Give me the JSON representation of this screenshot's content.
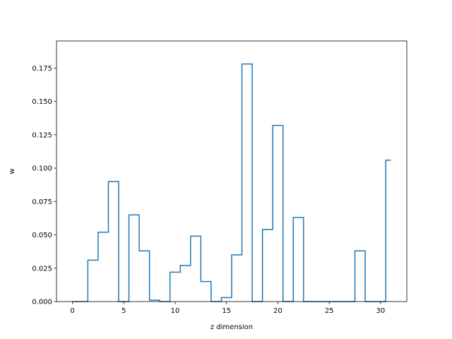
{
  "chart_data": {
    "type": "line",
    "style": "step-mid",
    "title": "",
    "xlabel": "z dimension",
    "ylabel": "w",
    "xlim": [
      -1.55,
      32.55
    ],
    "ylim": [
      0,
      0.1953
    ],
    "grid": false,
    "legend": "none",
    "x_ticks": [
      0,
      5,
      10,
      15,
      20,
      25,
      30
    ],
    "x_tick_labels": [
      "0",
      "5",
      "10",
      "15",
      "20",
      "25",
      "30"
    ],
    "y_ticks": [
      0.0,
      0.025,
      0.05,
      0.075,
      0.1,
      0.125,
      0.15,
      0.175
    ],
    "y_tick_labels": [
      "0.000",
      "0.025",
      "0.050",
      "0.075",
      "0.100",
      "0.125",
      "0.150",
      "0.175"
    ],
    "line_color": "#1f77b4",
    "series": [
      {
        "x": [
          0,
          1,
          2,
          3,
          4,
          5,
          6,
          7,
          8,
          9,
          10,
          11,
          12,
          13,
          14,
          15,
          16,
          17,
          18,
          19,
          20,
          21,
          22,
          23,
          24,
          25,
          26,
          27,
          28,
          29,
          30,
          31
        ],
        "values": [
          0.0,
          0.0,
          0.031,
          0.052,
          0.09,
          0.0,
          0.065,
          0.038,
          0.001,
          0.0,
          0.022,
          0.027,
          0.049,
          0.015,
          0.0,
          0.003,
          0.035,
          0.178,
          0.0,
          0.054,
          0.132,
          0.0,
          0.063,
          0.0,
          0.0,
          0.0,
          0.0,
          0.0,
          0.038,
          0.0,
          0.0,
          0.106
        ]
      }
    ]
  }
}
